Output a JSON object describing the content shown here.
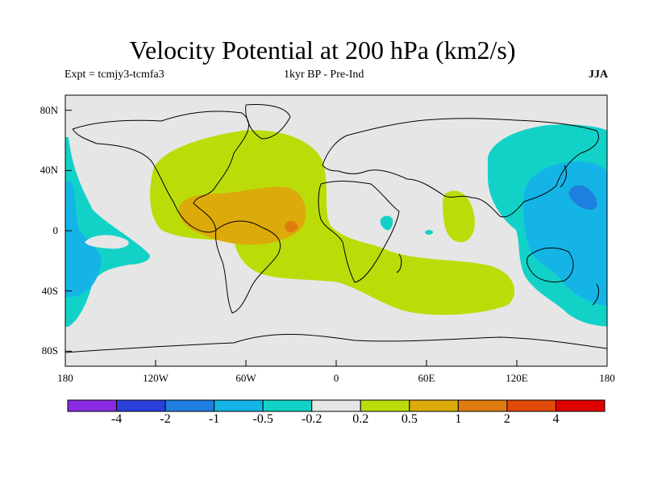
{
  "title": "Velocity Potential at 200 hPa (km2/s)",
  "subtitle_left": "Expt = tcmjy3-tcmfa3",
  "subtitle_center": "1kyr BP - Pre-Ind",
  "subtitle_right": "JJA",
  "axes": {
    "y_ticks": [
      "80N",
      "40N",
      "0",
      "40S",
      "80S"
    ],
    "x_ticks": [
      "180",
      "120W",
      "60W",
      "0",
      "60E",
      "120E",
      "180"
    ]
  },
  "colorbar": {
    "colors": [
      "#8a2be2",
      "#2a3fdc",
      "#1e7fe0",
      "#14b4e6",
      "#12d2c8",
      "#e6e6e6",
      "#bcdc0a",
      "#dcaa0a",
      "#e07b12",
      "#e04a08",
      "#e00000"
    ],
    "labels": [
      "-4",
      "-2",
      "-1",
      "-0.5",
      "-0.2",
      "0.2",
      "0.5",
      "1",
      "2",
      "4"
    ]
  },
  "colors": {
    "neutral": "#e6e6e6",
    "pos1": "#bcdc0a",
    "pos2": "#dcaa0a",
    "pos3": "#e07b12",
    "neg1": "#12d2c8",
    "neg2": "#14b4e6",
    "neg3": "#1e7fe0"
  }
}
